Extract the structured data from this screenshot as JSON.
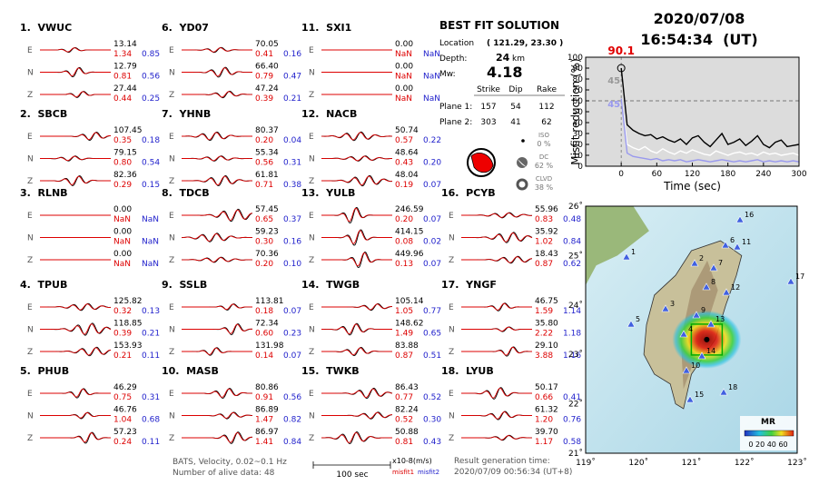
{
  "components": [
    "E",
    "N",
    "Z"
  ],
  "stations": [
    {
      "label": "1.  VWUC",
      "traces": [
        {
          "amplitude": "13.14",
          "misfit1": "1.34",
          "misfit2": "0.85"
        },
        {
          "amplitude": "12.79",
          "misfit1": "0.81",
          "misfit2": "0.56"
        },
        {
          "amplitude": "27.44",
          "misfit1": "0.44",
          "misfit2": "0.25"
        }
      ]
    },
    {
      "label": "2.  SBCB",
      "traces": [
        {
          "amplitude": "107.45",
          "misfit1": "0.35",
          "misfit2": "0.18"
        },
        {
          "amplitude": "79.15",
          "misfit1": "0.80",
          "misfit2": "0.54"
        },
        {
          "amplitude": "82.36",
          "misfit1": "0.29",
          "misfit2": "0.15"
        }
      ]
    },
    {
      "label": "3.  RLNB",
      "traces": [
        {
          "amplitude": "0.00",
          "misfit1": "NaN",
          "misfit2": "NaN"
        },
        {
          "amplitude": "0.00",
          "misfit1": "NaN",
          "misfit2": "NaN"
        },
        {
          "amplitude": "0.00",
          "misfit1": "NaN",
          "misfit2": "NaN"
        }
      ]
    },
    {
      "label": "4.  TPUB",
      "traces": [
        {
          "amplitude": "125.82",
          "misfit1": "0.32",
          "misfit2": "0.13"
        },
        {
          "amplitude": "118.85",
          "misfit1": "0.39",
          "misfit2": "0.21"
        },
        {
          "amplitude": "153.93",
          "misfit1": "0.21",
          "misfit2": "0.11"
        }
      ]
    },
    {
      "label": "5.  PHUB",
      "traces": [
        {
          "amplitude": "46.29",
          "misfit1": "0.75",
          "misfit2": "0.31"
        },
        {
          "amplitude": "46.76",
          "misfit1": "1.04",
          "misfit2": "0.68"
        },
        {
          "amplitude": "57.23",
          "misfit1": "0.24",
          "misfit2": "0.11"
        }
      ]
    },
    {
      "label": "6.  YD07",
      "traces": [
        {
          "amplitude": "70.05",
          "misfit1": "0.41",
          "misfit2": "0.16"
        },
        {
          "amplitude": "66.40",
          "misfit1": "0.79",
          "misfit2": "0.47"
        },
        {
          "amplitude": "47.24",
          "misfit1": "0.39",
          "misfit2": "0.21"
        }
      ]
    },
    {
      "label": "7.  YHNB",
      "traces": [
        {
          "amplitude": "80.37",
          "misfit1": "0.20",
          "misfit2": "0.04"
        },
        {
          "amplitude": "55.34",
          "misfit1": "0.56",
          "misfit2": "0.31"
        },
        {
          "amplitude": "61.81",
          "misfit1": "0.71",
          "misfit2": "0.38"
        }
      ]
    },
    {
      "label": "8.  TDCB",
      "traces": [
        {
          "amplitude": "57.45",
          "misfit1": "0.65",
          "misfit2": "0.37"
        },
        {
          "amplitude": "59.23",
          "misfit1": "0.30",
          "misfit2": "0.16"
        },
        {
          "amplitude": "70.36",
          "misfit1": "0.20",
          "misfit2": "0.10"
        }
      ]
    },
    {
      "label": "9.  SSLB",
      "traces": [
        {
          "amplitude": "113.81",
          "misfit1": "0.18",
          "misfit2": "0.07"
        },
        {
          "amplitude": "72.34",
          "misfit1": "0.60",
          "misfit2": "0.23"
        },
        {
          "amplitude": "131.98",
          "misfit1": "0.14",
          "misfit2": "0.07"
        }
      ]
    },
    {
      "label": "10.  MASB",
      "traces": [
        {
          "amplitude": "80.86",
          "misfit1": "0.91",
          "misfit2": "0.56"
        },
        {
          "amplitude": "86.89",
          "misfit1": "1.47",
          "misfit2": "0.82"
        },
        {
          "amplitude": "86.97",
          "misfit1": "1.41",
          "misfit2": "0.84"
        }
      ]
    },
    {
      "label": "11.  SXI1",
      "traces": [
        {
          "amplitude": "0.00",
          "misfit1": "NaN",
          "misfit2": "NaN"
        },
        {
          "amplitude": "0.00",
          "misfit1": "NaN",
          "misfit2": "NaN"
        },
        {
          "amplitude": "0.00",
          "misfit1": "NaN",
          "misfit2": "NaN"
        }
      ]
    },
    {
      "label": "12.  NACB",
      "traces": [
        {
          "amplitude": "50.74",
          "misfit1": "0.57",
          "misfit2": "0.22"
        },
        {
          "amplitude": "48.64",
          "misfit1": "0.43",
          "misfit2": "0.20"
        },
        {
          "amplitude": "48.04",
          "misfit1": "0.19",
          "misfit2": "0.07"
        }
      ]
    },
    {
      "label": "13.  YULB",
      "traces": [
        {
          "amplitude": "246.59",
          "misfit1": "0.20",
          "misfit2": "0.07"
        },
        {
          "amplitude": "414.15",
          "misfit1": "0.08",
          "misfit2": "0.02"
        },
        {
          "amplitude": "449.96",
          "misfit1": "0.13",
          "misfit2": "0.07"
        }
      ]
    },
    {
      "label": "14.  TWGB",
      "traces": [
        {
          "amplitude": "105.14",
          "misfit1": "1.05",
          "misfit2": "0.77"
        },
        {
          "amplitude": "148.62",
          "misfit1": "1.49",
          "misfit2": "0.65"
        },
        {
          "amplitude": "83.88",
          "misfit1": "0.87",
          "misfit2": "0.51"
        }
      ]
    },
    {
      "label": "15.  TWKB",
      "traces": [
        {
          "amplitude": "86.43",
          "misfit1": "0.77",
          "misfit2": "0.52"
        },
        {
          "amplitude": "82.24",
          "misfit1": "0.52",
          "misfit2": "0.30"
        },
        {
          "amplitude": "50.88",
          "misfit1": "0.81",
          "misfit2": "0.43"
        }
      ]
    },
    {
      "label": "16.  PCYB",
      "traces": [
        {
          "amplitude": "55.96",
          "misfit1": "0.83",
          "misfit2": "0.48"
        },
        {
          "amplitude": "35.92",
          "misfit1": "1.02",
          "misfit2": "0.84"
        },
        {
          "amplitude": "18.43",
          "misfit1": "0.87",
          "misfit2": "0.62"
        }
      ]
    },
    {
      "label": "17.  YNGF",
      "traces": [
        {
          "amplitude": "46.75",
          "misfit1": "1.59",
          "misfit2": "1.14"
        },
        {
          "amplitude": "35.80",
          "misfit1": "2.22",
          "misfit2": "1.18"
        },
        {
          "amplitude": "29.10",
          "misfit1": "3.88",
          "misfit2": "1.16"
        }
      ]
    },
    {
      "label": "18.  LYUB",
      "traces": [
        {
          "amplitude": "50.17",
          "misfit1": "0.66",
          "misfit2": "0.41"
        },
        {
          "amplitude": "61.32",
          "misfit1": "1.20",
          "misfit2": "0.76"
        },
        {
          "amplitude": "39.70",
          "misfit1": "1.17",
          "misfit2": "0.58"
        }
      ]
    }
  ],
  "solution": {
    "title": "BEST FIT SOLUTION",
    "location_label": "Location",
    "location": "( 121.29, 23.30 )",
    "depth_label": "Depth:",
    "depth": "24",
    "depth_unit": "km",
    "mw_label": "Mw:",
    "mw": "4.18",
    "columns": [
      "Strike",
      "Dip",
      "Rake"
    ],
    "planes": [
      {
        "label": "Plane 1:",
        "values": [
          "157",
          "54",
          "112"
        ]
      },
      {
        "label": "Plane 2:",
        "values": [
          "303",
          "41",
          "62"
        ]
      }
    ],
    "components": [
      {
        "name": "ISO",
        "percent": "0 %"
      },
      {
        "name": "DC",
        "percent": "62 %"
      },
      {
        "name": "CLVD",
        "percent": "38 %"
      }
    ]
  },
  "header": {
    "date": "2020/07/08",
    "time": "16:54:34  (UT)"
  },
  "footer": {
    "source": "BATS, Velocity, 0.02~0.1 Hz",
    "alive": "Number of alive data: 48",
    "scale": "100 sec",
    "unit": "x10-8(m/s)",
    "misfit1": "misfit1",
    "misfit2": "misfit2",
    "result_label": "Result generation time:",
    "result_time": "2020/07/09 00:56:34 (UT+8)"
  },
  "misfit_plot": {
    "type": "line",
    "xlabel": "Time (sec)",
    "ylabel": "Misfit reduction (%)",
    "xlim": [
      -60,
      300
    ],
    "ylim": [
      0,
      100
    ],
    "xticks": [
      0,
      60,
      120,
      180,
      240,
      300
    ],
    "yticks": [
      0,
      10,
      20,
      30,
      40,
      50,
      60,
      70,
      80,
      90,
      100
    ],
    "reference_line": 60,
    "background": "#dcdcdc",
    "annotations": [
      {
        "text": "90.1",
        "color": "#e00000"
      },
      {
        "text": "45",
        "color": "#999999"
      },
      {
        "text": "45",
        "color": "#9999ee"
      }
    ],
    "x": [
      0,
      10,
      20,
      30,
      40,
      50,
      60,
      70,
      80,
      90,
      100,
      110,
      120,
      130,
      140,
      150,
      160,
      170,
      180,
      190,
      200,
      210,
      220,
      230,
      240,
      250,
      260,
      270,
      280,
      290,
      300
    ],
    "series": [
      {
        "color": "#000000",
        "values": [
          90,
          38,
          33,
          30,
          28,
          29,
          25,
          27,
          24,
          22,
          25,
          20,
          26,
          28,
          22,
          18,
          24,
          30,
          20,
          22,
          25,
          19,
          23,
          28,
          20,
          17,
          22,
          24,
          18,
          19,
          20
        ]
      },
      {
        "color": "#ffffff",
        "values": [
          62,
          20,
          17,
          15,
          18,
          14,
          12,
          16,
          13,
          11,
          14,
          12,
          15,
          13,
          11,
          10,
          14,
          12,
          10,
          12,
          13,
          11,
          12,
          10,
          13,
          11,
          12,
          10,
          11,
          12,
          10
        ]
      },
      {
        "color": "#9999ee",
        "values": [
          62,
          12,
          9,
          8,
          7,
          6,
          7,
          5,
          6,
          5,
          6,
          4,
          5,
          6,
          5,
          4,
          5,
          6,
          5,
          4,
          5,
          4,
          5,
          6,
          4,
          5,
          4,
          5,
          4,
          5,
          4
        ]
      }
    ]
  },
  "map": {
    "lon_ticks": [
      "119˚",
      "120˚",
      "121˚",
      "122˚",
      "123˚"
    ],
    "lat_ticks": [
      "21˚",
      "22˚",
      "23˚",
      "24˚",
      "25˚",
      "26˚"
    ],
    "stations": [
      "1",
      "2",
      "3",
      "4",
      "5",
      "6",
      "7",
      "8",
      "9",
      "10",
      "11",
      "12",
      "13",
      "14",
      "15",
      "16",
      "17",
      "18"
    ],
    "colorbar_title": "MR",
    "colorbar_ticks": "0 20 40 60"
  }
}
